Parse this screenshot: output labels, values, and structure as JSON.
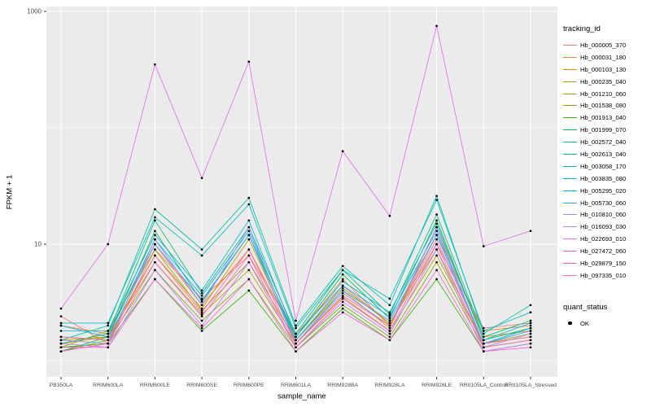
{
  "chart_data": {
    "type": "line",
    "title": "",
    "xlabel": "sample_name",
    "ylabel": "FPKM + 1",
    "yscale": "log10",
    "ylim": [
      1,
      1000
    ],
    "y_major_ticks": [
      10,
      1000
    ],
    "y_major_tick_labels": [
      "10",
      "1000"
    ],
    "y_minor_gridlines": [
      1,
      100
    ],
    "grid": true,
    "panel_background": "#EBEBEB",
    "gridline_color": "#FFFFFF",
    "tick_label_color": "#4D4D4D",
    "point_color": "#000000",
    "legend_title": "tracking_id",
    "legend2_title": "quant_status",
    "legend2_items": [
      {
        "label": "OK",
        "marker": "point",
        "color": "#000000"
      }
    ],
    "x": [
      "PB350LA",
      "RRIM600LA",
      "RRIM600LE",
      "RRIM600SE",
      "RRIM600PE",
      "RRIM601LA",
      "RRIM928BA",
      "RRIM928LA",
      "RRIM928LE",
      "RRII105LA_Control",
      "RRII105LA_Stressed"
    ],
    "series": [
      {
        "name": "Hb_000005_370",
        "color": "#F8766D",
        "values": [
          2.4,
          1.4,
          9,
          3.4,
          8,
          1.7,
          4.4,
          2.1,
          10,
          1.9,
          2.1
        ]
      },
      {
        "name": "Hb_000031_180",
        "color": "#EA8331",
        "values": [
          2.0,
          1.7,
          10,
          3.0,
          9,
          1.6,
          5.0,
          2.0,
          12,
          1.8,
          2.0
        ]
      },
      {
        "name": "Hb_000103_130",
        "color": "#D89000",
        "values": [
          1.5,
          1.6,
          8,
          2.8,
          11,
          1.5,
          4.0,
          1.9,
          14,
          1.6,
          1.8
        ]
      },
      {
        "name": "Hb_000235_040",
        "color": "#C09B00",
        "values": [
          1.4,
          1.6,
          7,
          2.5,
          6,
          1.4,
          3.5,
          1.8,
          8,
          1.4,
          1.7
        ]
      },
      {
        "name": "Hb_001210_060",
        "color": "#A3A500",
        "values": [
          1.3,
          1.8,
          9,
          2.7,
          7,
          1.5,
          4.2,
          2.1,
          9,
          1.4,
          1.6
        ]
      },
      {
        "name": "Hb_001538_080",
        "color": "#7CAE00",
        "values": [
          1.2,
          1.5,
          6,
          2.2,
          5,
          1.3,
          3.0,
          1.6,
          7,
          1.3,
          1.5
        ]
      },
      {
        "name": "Hb_001913_040",
        "color": "#39B600",
        "values": [
          1.3,
          1.4,
          5,
          1.8,
          4,
          1.2,
          2.8,
          1.5,
          5,
          1.2,
          1.4
        ]
      },
      {
        "name": "Hb_001999_070",
        "color": "#00BB4E",
        "values": [
          1.2,
          1.6,
          13,
          3.2,
          12,
          1.6,
          5.5,
          2.3,
          16,
          1.5,
          1.9
        ]
      },
      {
        "name": "Hb_002572_040",
        "color": "#00BF7D",
        "values": [
          1.4,
          1.7,
          16,
          3.8,
          14,
          1.7,
          6.0,
          2.5,
          18,
          1.6,
          2.2
        ]
      },
      {
        "name": "Hb_002613_040",
        "color": "#00C1A3",
        "values": [
          1.5,
          2.0,
          20,
          9.0,
          25,
          2.0,
          6.5,
          3.0,
          26,
          1.7,
          3.0
        ]
      },
      {
        "name": "Hb_003058_170",
        "color": "#00BFC4",
        "values": [
          2.1,
          2.1,
          17,
          8.0,
          22,
          1.9,
          6.0,
          3.4,
          24,
          1.8,
          2.6
        ]
      },
      {
        "name": "Hb_003835_080",
        "color": "#00BAE0",
        "values": [
          1.8,
          1.8,
          12,
          4.0,
          16,
          1.6,
          4.8,
          2.6,
          15,
          1.5,
          2.1
        ]
      },
      {
        "name": "Hb_005295_020",
        "color": "#00B0F6",
        "values": [
          2.0,
          1.6,
          11,
          3.6,
          13,
          1.5,
          4.4,
          2.4,
          13,
          1.4,
          1.9
        ]
      },
      {
        "name": "Hb_005730_060",
        "color": "#35A2FF",
        "values": [
          1.6,
          1.5,
          10,
          3.3,
          12,
          1.4,
          4.0,
          2.2,
          12,
          1.4,
          1.8
        ]
      },
      {
        "name": "Hb_010810_060",
        "color": "#9590FF",
        "values": [
          1.5,
          1.4,
          11,
          3.0,
          14,
          1.4,
          3.8,
          2.0,
          14,
          1.3,
          1.7
        ]
      },
      {
        "name": "Hb_016093_030",
        "color": "#C77CFF",
        "values": [
          1.4,
          1.3,
          6,
          2.0,
          7,
          1.3,
          3.2,
          1.7,
          9,
          1.2,
          1.4
        ]
      },
      {
        "name": "Hb_022693_010",
        "color": "#E76BF3",
        "values": [
          2.8,
          10,
          350,
          37,
          370,
          2.2,
          63,
          17.5,
          750,
          9.6,
          13
        ]
      },
      {
        "name": "Hb_027472_060",
        "color": "#FA62DB",
        "values": [
          1.3,
          1.3,
          5,
          1.9,
          5,
          1.2,
          2.6,
          1.5,
          6,
          1.2,
          1.3
        ]
      },
      {
        "name": "Hb_029879_150",
        "color": "#FF62BC",
        "values": [
          1.2,
          1.4,
          7,
          2.4,
          8,
          1.3,
          3.4,
          1.8,
          10,
          1.3,
          1.5
        ]
      },
      {
        "name": "Hb_097335_010",
        "color": "#FF6A98",
        "values": [
          1.6,
          1.5,
          8,
          2.6,
          9,
          1.4,
          3.6,
          2.0,
          11,
          1.4,
          1.6
        ]
      }
    ]
  }
}
